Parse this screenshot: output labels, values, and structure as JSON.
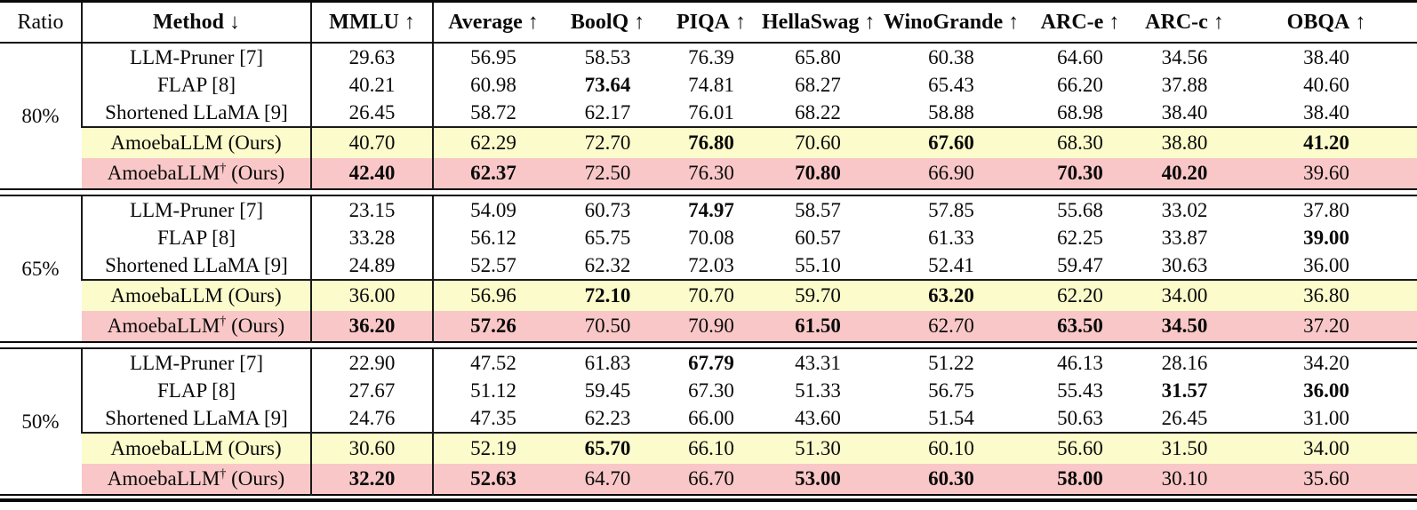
{
  "table": {
    "colors": {
      "highlight_yellow": "#FBFBCB",
      "highlight_pink": "#F9C7C7",
      "rule_color": "#0a0a0a"
    },
    "columns": [
      {
        "label": "Ratio",
        "arrow": "",
        "bold": false
      },
      {
        "label": "Method",
        "arrow": "↓",
        "bold": true
      },
      {
        "label": "MMLU",
        "arrow": "↑",
        "bold": true
      },
      {
        "label": "Average",
        "arrow": "↑",
        "bold": true
      },
      {
        "label": "BoolQ",
        "arrow": "↑",
        "bold": true
      },
      {
        "label": "PIQA",
        "arrow": "↑",
        "bold": true
      },
      {
        "label": "HellaSwag",
        "arrow": "↑",
        "bold": true
      },
      {
        "label": "WinoGrande",
        "arrow": "↑",
        "bold": true
      },
      {
        "label": "ARC-e",
        "arrow": "↑",
        "bold": true
      },
      {
        "label": "ARC-c",
        "arrow": "↑",
        "bold": true
      },
      {
        "label": "OBQA",
        "arrow": "↑",
        "bold": true
      }
    ],
    "groups": [
      {
        "ratio": "80%",
        "rows": [
          {
            "method": "LLM-Pruner [7]",
            "highlight": null,
            "values": [
              "29.63",
              "56.95",
              "58.53",
              "76.39",
              "65.80",
              "60.38",
              "64.60",
              "34.56",
              "38.40"
            ],
            "bold": []
          },
          {
            "method": "FLAP [8]",
            "highlight": null,
            "values": [
              "40.21",
              "60.98",
              "73.64",
              "74.81",
              "68.27",
              "65.43",
              "66.20",
              "37.88",
              "40.60"
            ],
            "bold": [
              2
            ]
          },
          {
            "method": "Shortened LLaMA [9]",
            "highlight": null,
            "values": [
              "26.45",
              "58.72",
              "62.17",
              "76.01",
              "68.22",
              "58.88",
              "68.98",
              "38.40",
              "38.40"
            ],
            "bold": []
          },
          {
            "method": "AmoebaLLM (Ours)",
            "highlight": "yellow",
            "values": [
              "40.70",
              "62.29",
              "72.70",
              "76.80",
              "70.60",
              "67.60",
              "68.30",
              "38.80",
              "41.20"
            ],
            "bold": [
              3,
              5,
              8
            ]
          },
          {
            "method": "AmoebaLLM† (Ours)",
            "highlight": "pink",
            "values": [
              "42.40",
              "62.37",
              "72.50",
              "76.30",
              "70.80",
              "66.90",
              "70.30",
              "40.20",
              "39.60"
            ],
            "bold": [
              0,
              1,
              4,
              6,
              7
            ]
          }
        ]
      },
      {
        "ratio": "65%",
        "rows": [
          {
            "method": "LLM-Pruner [7]",
            "highlight": null,
            "values": [
              "23.15",
              "54.09",
              "60.73",
              "74.97",
              "58.57",
              "57.85",
              "55.68",
              "33.02",
              "37.80"
            ],
            "bold": [
              3
            ]
          },
          {
            "method": "FLAP [8]",
            "highlight": null,
            "values": [
              "33.28",
              "56.12",
              "65.75",
              "70.08",
              "60.57",
              "61.33",
              "62.25",
              "33.87",
              "39.00"
            ],
            "bold": [
              8
            ]
          },
          {
            "method": "Shortened LLaMA [9]",
            "highlight": null,
            "values": [
              "24.89",
              "52.57",
              "62.32",
              "72.03",
              "55.10",
              "52.41",
              "59.47",
              "30.63",
              "36.00"
            ],
            "bold": []
          },
          {
            "method": "AmoebaLLM (Ours)",
            "highlight": "yellow",
            "values": [
              "36.00",
              "56.96",
              "72.10",
              "70.70",
              "59.70",
              "63.20",
              "62.20",
              "34.00",
              "36.80"
            ],
            "bold": [
              2,
              5
            ]
          },
          {
            "method": "AmoebaLLM† (Ours)",
            "highlight": "pink",
            "values": [
              "36.20",
              "57.26",
              "70.50",
              "70.90",
              "61.50",
              "62.70",
              "63.50",
              "34.50",
              "37.20"
            ],
            "bold": [
              0,
              1,
              4,
              6,
              7
            ]
          }
        ]
      },
      {
        "ratio": "50%",
        "rows": [
          {
            "method": "LLM-Pruner [7]",
            "highlight": null,
            "values": [
              "22.90",
              "47.52",
              "61.83",
              "67.79",
              "43.31",
              "51.22",
              "46.13",
              "28.16",
              "34.20"
            ],
            "bold": [
              3
            ]
          },
          {
            "method": "FLAP [8]",
            "highlight": null,
            "values": [
              "27.67",
              "51.12",
              "59.45",
              "67.30",
              "51.33",
              "56.75",
              "55.43",
              "31.57",
              "36.00"
            ],
            "bold": [
              7,
              8
            ]
          },
          {
            "method": "Shortened LLaMA [9]",
            "highlight": null,
            "values": [
              "24.76",
              "47.35",
              "62.23",
              "66.00",
              "43.60",
              "51.54",
              "50.63",
              "26.45",
              "31.00"
            ],
            "bold": []
          },
          {
            "method": "AmoebaLLM (Ours)",
            "highlight": "yellow",
            "values": [
              "30.60",
              "52.19",
              "65.70",
              "66.10",
              "51.30",
              "60.10",
              "56.60",
              "31.50",
              "34.00"
            ],
            "bold": [
              2
            ]
          },
          {
            "method": "AmoebaLLM† (Ours)",
            "highlight": "pink",
            "values": [
              "32.20",
              "52.63",
              "64.70",
              "66.70",
              "53.00",
              "60.30",
              "58.00",
              "30.10",
              "35.60"
            ],
            "bold": [
              0,
              1,
              4,
              5,
              6
            ]
          }
        ]
      }
    ]
  }
}
